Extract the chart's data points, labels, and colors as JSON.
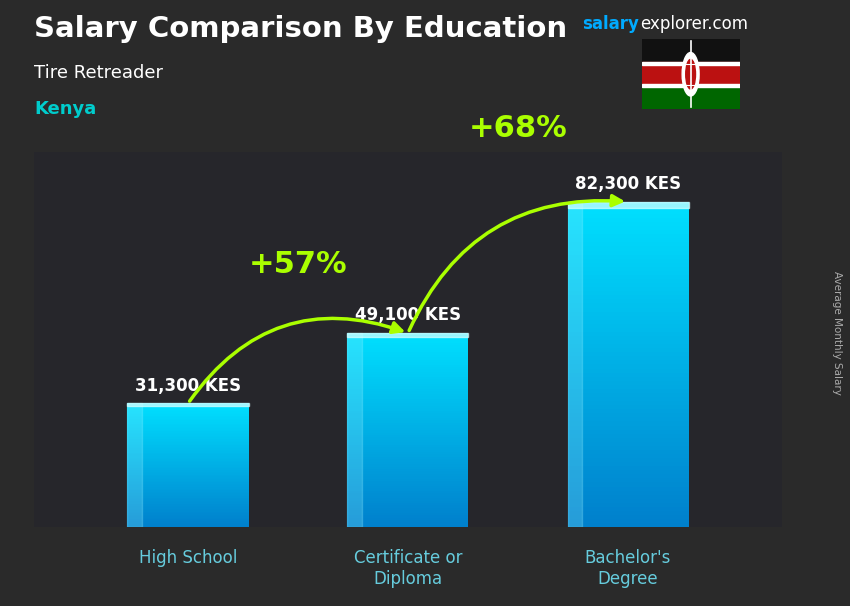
{
  "title": "Salary Comparison By Education",
  "subtitle": "Tire Retreader",
  "country": "Kenya",
  "categories": [
    "High School",
    "Certificate or\nDiploma",
    "Bachelor's\nDegree"
  ],
  "values": [
    31300,
    49100,
    82300
  ],
  "labels": [
    "31,300 KES",
    "49,100 KES",
    "82,300 KES"
  ],
  "pct_changes": [
    "+57%",
    "+68%"
  ],
  "background_color": "#2a2a2a",
  "title_color": "#FFFFFF",
  "subtitle_color": "#FFFFFF",
  "country_color": "#00CCCC",
  "label_color": "#FFFFFF",
  "pct_color": "#AAFF00",
  "arrow_color": "#AAFF00",
  "site_color_salary": "#00AAFF",
  "site_color_explorer": "#FFFFFF",
  "xlabel_color": "#66CCDD",
  "ylabel": "Average Monthly Salary",
  "bar_width": 0.55,
  "ylim": [
    0,
    95000
  ],
  "figsize": [
    8.5,
    6.06
  ],
  "dpi": 100,
  "bar_positions": [
    0.7,
    1.7,
    2.7
  ],
  "xlim": [
    0.0,
    3.4
  ]
}
